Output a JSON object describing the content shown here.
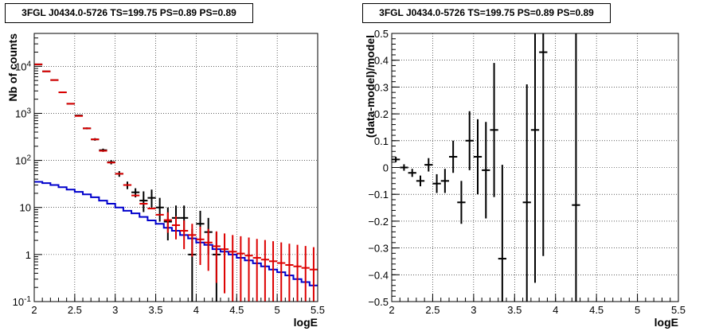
{
  "chart_data": [
    {
      "type": "line",
      "title": "3FGL J0434.0-5726 TS=199.75 PS=0.89 PS=0.89",
      "xlabel": "logE",
      "ylabel": "Nb of counts",
      "xlim": [
        2,
        5.5
      ],
      "ylim": [
        0.1,
        50000
      ],
      "yscale": "log",
      "x_ticks": [
        "2",
        "2.5",
        "3",
        "3.5",
        "4",
        "4.5",
        "5",
        "5.5"
      ],
      "y_ticks": [
        "10^{-1}",
        "1",
        "10",
        "10^{2}",
        "10^{3}",
        "10^{4}"
      ],
      "grid": true,
      "colors": {
        "data": "#000000",
        "model_points": "#dd0000",
        "model_line": "#0000cc"
      },
      "series": [
        {
          "id": "data",
          "x": [
            2.05,
            2.15,
            2.25,
            2.35,
            2.45,
            2.55,
            2.65,
            2.75,
            2.85,
            2.95,
            3.05,
            3.15,
            3.25,
            3.35,
            3.45,
            3.55,
            3.65,
            3.75,
            3.85,
            3.95,
            4.05,
            4.15,
            4.25
          ],
          "y": [
            11000,
            7800,
            5100,
            2800,
            1600,
            900,
            480,
            280,
            165,
            92,
            52,
            30,
            21,
            14,
            16,
            10,
            5,
            6,
            6,
            1,
            4.5,
            3,
            1
          ],
          "yerr_low": [
            105,
            88,
            71,
            53,
            40,
            30,
            22,
            17,
            13,
            9.6,
            7.2,
            5.5,
            4.6,
            6,
            6,
            5,
            3,
            3,
            3,
            0.99,
            2.5,
            2,
            0.99
          ],
          "yerr_high": [
            105,
            88,
            71,
            53,
            40,
            30,
            22,
            17,
            13,
            9.6,
            7.2,
            5.5,
            4.6,
            8,
            8,
            6,
            5,
            5,
            5,
            2.5,
            4,
            3,
            2
          ]
        },
        {
          "id": "model_points",
          "x": [
            2.05,
            2.15,
            2.25,
            2.35,
            2.45,
            2.55,
            2.65,
            2.75,
            2.85,
            2.95,
            3.05,
            3.15,
            3.25,
            3.35,
            3.45,
            3.55,
            3.65,
            3.75,
            3.85,
            3.95,
            4.05,
            4.15,
            4.25,
            4.35,
            4.45,
            4.55,
            4.65,
            4.75,
            4.85,
            4.95,
            5.05,
            5.15,
            5.25,
            5.35,
            5.45
          ],
          "y": [
            11000,
            7800,
            5100,
            2800,
            1600,
            880,
            480,
            280,
            160,
            90,
            52,
            30,
            18,
            12,
            9.5,
            7,
            5.4,
            4.2,
            3.2,
            2.6,
            2.1,
            1.8,
            1.5,
            1.3,
            1.15,
            1.05,
            0.95,
            0.85,
            0.78,
            0.72,
            0.66,
            0.6,
            0.56,
            0.52,
            0.48
          ],
          "yerr_low": [
            0,
            0,
            0,
            0,
            0,
            0,
            0,
            0,
            0,
            0,
            0,
            0,
            0,
            0,
            0,
            0,
            2.5,
            2.1,
            1.9,
            1.7,
            1.5,
            1.35,
            1.25,
            1.15,
            1.05,
            0.98,
            0.9,
            0.82,
            0.76,
            0.7,
            0.65,
            0.59,
            0.55,
            0.51,
            0.47
          ],
          "yerr_high": [
            0,
            0,
            0,
            0,
            0,
            0,
            0,
            0,
            0,
            0,
            0,
            0,
            0,
            0,
            0,
            0,
            2.5,
            2.3,
            2.1,
            1.9,
            1.8,
            1.7,
            1.6,
            1.5,
            1.45,
            1.4,
            1.35,
            1.3,
            1.25,
            1.2,
            1.15,
            1.1,
            1.05,
            1.0,
            0.95
          ]
        },
        {
          "id": "model_line",
          "step": true,
          "x": [
            2.0,
            2.1,
            2.2,
            2.3,
            2.4,
            2.5,
            2.6,
            2.7,
            2.8,
            2.9,
            3.0,
            3.1,
            3.2,
            3.3,
            3.4,
            3.5,
            3.6,
            3.7,
            3.8,
            3.9,
            4.0,
            4.1,
            4.2,
            4.3,
            4.4,
            4.5,
            4.6,
            4.7,
            4.8,
            4.9,
            5.0,
            5.1,
            5.2,
            5.3,
            5.4
          ],
          "y": [
            35,
            33,
            30,
            27,
            24,
            21.5,
            19,
            16.5,
            14,
            12,
            10,
            8.5,
            7.5,
            6.3,
            5.3,
            4.5,
            3.7,
            3.2,
            2.6,
            2.2,
            1.8,
            1.6,
            1.3,
            1.15,
            1.0,
            0.85,
            0.75,
            0.65,
            0.56,
            0.48,
            0.42,
            0.36,
            0.3,
            0.26,
            0.22
          ]
        }
      ]
    },
    {
      "type": "scatter",
      "title": "3FGL J0434.0-5726 TS=199.75 PS=0.89 PS=0.89",
      "xlabel": "logE",
      "ylabel": "(data-model)/model",
      "xlim": [
        2,
        5.5
      ],
      "ylim": [
        -0.5,
        0.5
      ],
      "x_ticks": [
        "2",
        "2.5",
        "3",
        "3.5",
        "4",
        "4.5",
        "5",
        "5.5"
      ],
      "y_ticks": [
        "−0.5",
        "−0.4",
        "−0.3",
        "−0.2",
        "−0.1",
        "0",
        "0.1",
        "0.2",
        "0.3",
        "0.4",
        "0.5"
      ],
      "grid": true,
      "series": [
        {
          "id": "residuals",
          "x": [
            2.05,
            2.15,
            2.25,
            2.35,
            2.45,
            2.55,
            2.65,
            2.75,
            2.85,
            2.95,
            3.05,
            3.15,
            3.25,
            3.35,
            3.65,
            3.75,
            3.85,
            4.25
          ],
          "y": [
            0.03,
            0.0,
            -0.02,
            -0.05,
            0.01,
            -0.06,
            -0.05,
            0.04,
            -0.13,
            0.1,
            0.04,
            -0.01,
            0.14,
            -0.34,
            -0.13,
            0.14,
            0.43,
            -0.14
          ],
          "yerr": [
            0.01,
            0.012,
            0.015,
            0.02,
            0.025,
            0.035,
            0.045,
            0.06,
            0.08,
            0.11,
            0.14,
            0.18,
            0.25,
            0.35,
            0.44,
            0.57,
            0.76,
            0.9
          ]
        }
      ]
    }
  ]
}
